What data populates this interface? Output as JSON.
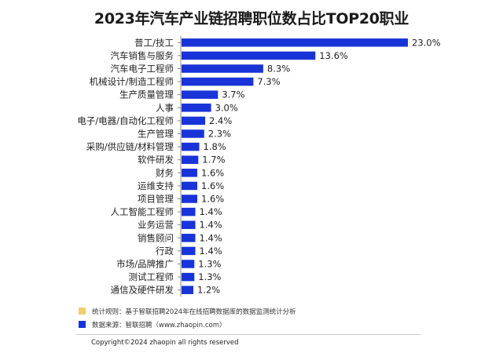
{
  "chart_data": {
    "type": "bar",
    "orientation": "horizontal",
    "title": "2023年汽车产业链招聘职位数占比TOP20职业",
    "categories": [
      "普工/技工",
      "汽车销售与服务",
      "汽车电子工程师",
      "机械设计/制造工程师",
      "生产质量管理",
      "人事",
      "电子/电器/自动化工程师",
      "生产管理",
      "采购/供应链/材料管理",
      "软件研发",
      "财务",
      "运维支持",
      "项目管理",
      "人工智能工程师",
      "业务运营",
      "销售顾问",
      "行政",
      "市场/品牌推广",
      "测试工程师",
      "通信及硬件研发"
    ],
    "values": [
      23.0,
      13.6,
      8.3,
      7.3,
      3.7,
      3.0,
      2.4,
      2.3,
      1.8,
      1.7,
      1.6,
      1.6,
      1.6,
      1.4,
      1.4,
      1.4,
      1.4,
      1.3,
      1.3,
      1.2
    ],
    "labels": [
      "23.0%",
      "13.6%",
      "8.3%",
      "7.3%",
      "3.7%",
      "3.0%",
      "2.4%",
      "2.3%",
      "1.8%",
      "1.7%",
      "1.6%",
      "1.6%",
      "1.6%",
      "1.4%",
      "1.4%",
      "1.4%",
      "1.4%",
      "1.3%",
      "1.3%",
      "1.2%"
    ],
    "xlabel": "",
    "ylabel": "",
    "xlim": [
      0,
      23.0
    ],
    "grid": false,
    "bar_color": "#1834d8",
    "axis_color": "#888888"
  },
  "footnotes": [
    {
      "color": "#f1cf6c",
      "text": "统计规则：基于智联招聘2024年在线招聘数据库的数据监测统计分析"
    },
    {
      "color": "#1834d8",
      "text": "数据来源：智联招聘（www.zhaopin.com）"
    }
  ],
  "copyright": "Copyright©2024 zhaopin all rights reserved"
}
